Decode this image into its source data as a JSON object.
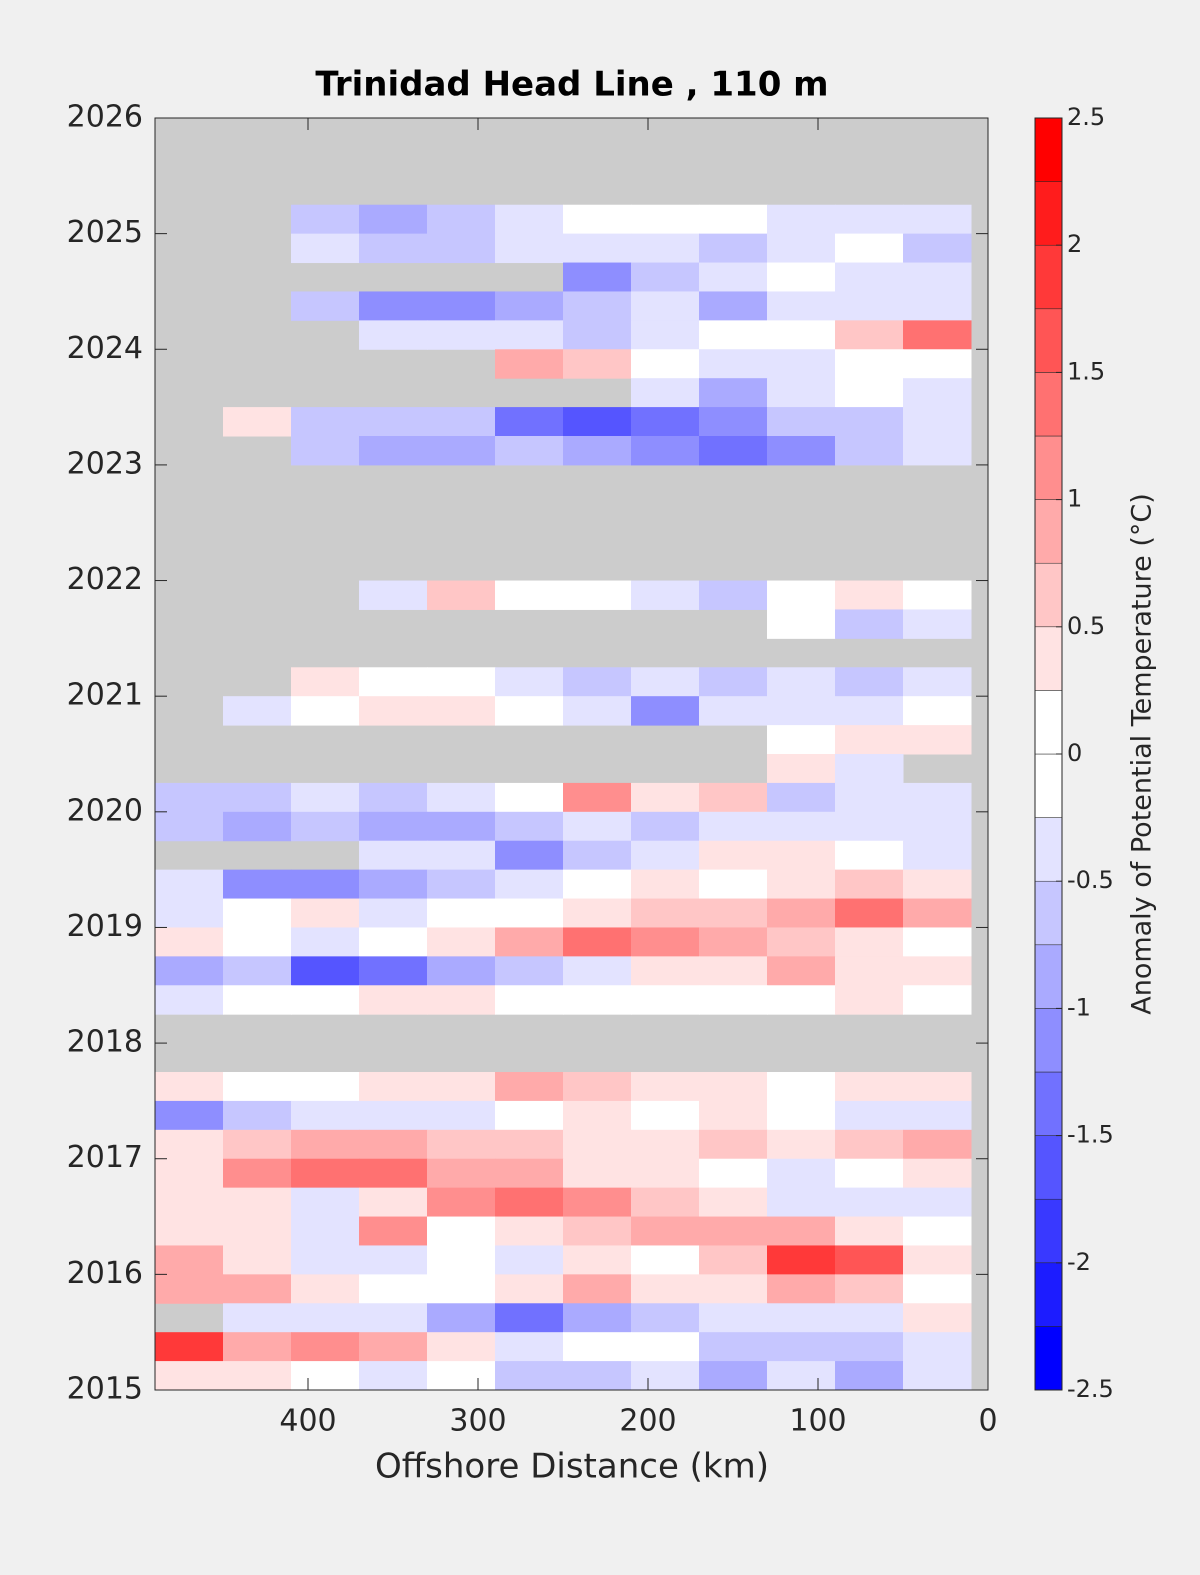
{
  "chart_data": {
    "type": "contourf",
    "title": "Trinidad Head Line , 110 m",
    "xlabel": "Offshore Distance (km)",
    "xlim": [
      490,
      0
    ],
    "xticks": [
      400,
      300,
      200,
      100,
      0
    ],
    "ylim": [
      2015,
      2026
    ],
    "yticks": [
      2015,
      2016,
      2017,
      2018,
      2019,
      2020,
      2021,
      2022,
      2023,
      2024,
      2025,
      2026
    ],
    "x": [
      470,
      430,
      390,
      350,
      310,
      270,
      230,
      190,
      150,
      110,
      70,
      30
    ],
    "y": [
      2025.875,
      2025.625,
      2025.375,
      2025.125,
      2024.875,
      2024.625,
      2024.375,
      2024.125,
      2023.875,
      2023.625,
      2023.375,
      2023.125,
      2022.875,
      2022.625,
      2022.375,
      2022.125,
      2021.875,
      2021.625,
      2021.375,
      2021.125,
      2020.875,
      2020.625,
      2020.375,
      2020.125,
      2019.875,
      2019.625,
      2019.375,
      2019.125,
      2018.875,
      2018.625,
      2018.375,
      2018.125,
      2017.875,
      2017.625,
      2017.375,
      2017.125,
      2016.875,
      2016.625,
      2016.375,
      2016.125,
      2015.875,
      2015.625,
      2015.375,
      2015.125
    ],
    "z": [
      [
        null,
        null,
        null,
        null,
        null,
        null,
        null,
        null,
        null,
        null,
        null,
        null
      ],
      [
        null,
        null,
        null,
        null,
        null,
        null,
        null,
        null,
        null,
        null,
        null,
        null
      ],
      [
        null,
        null,
        null,
        null,
        null,
        null,
        null,
        null,
        null,
        null,
        null,
        null
      ],
      [
        null,
        null,
        -0.6,
        -0.9,
        -0.5,
        -0.3,
        0.1,
        -0.1,
        0,
        -0.4,
        -0.3,
        -0.4
      ],
      [
        null,
        null,
        -0.4,
        -0.6,
        -0.5,
        -0.3,
        -0.4,
        -0.3,
        -0.6,
        -0.4,
        -0.2,
        -0.6
      ],
      [
        null,
        null,
        null,
        null,
        null,
        null,
        -1.2,
        -0.5,
        -0.3,
        -0.2,
        -0.4,
        -0.3
      ],
      [
        null,
        null,
        -0.7,
        -1.1,
        -1.0,
        -0.8,
        -0.5,
        -0.3,
        -0.8,
        -0.4,
        -0.3,
        -0.4
      ],
      [
        null,
        null,
        null,
        -0.3,
        -0.4,
        -0.4,
        -0.6,
        -0.3,
        0,
        0.1,
        0.7,
        1.4
      ],
      [
        null,
        null,
        null,
        null,
        null,
        1.0,
        0.6,
        0.2,
        -0.3,
        -0.4,
        -0.1,
        0.2
      ],
      [
        null,
        null,
        null,
        null,
        null,
        null,
        null,
        -0.3,
        -0.9,
        -0.3,
        -0.2,
        -0.3
      ],
      [
        null,
        0.3,
        -0.5,
        -0.6,
        -0.7,
        -1.3,
        -1.6,
        -1.4,
        -1.0,
        -0.7,
        -0.5,
        -0.4
      ],
      [
        null,
        null,
        -0.5,
        -0.8,
        -0.9,
        -0.6,
        -0.8,
        -1.0,
        -1.3,
        -1.1,
        -0.7,
        -0.4
      ],
      [
        null,
        null,
        null,
        null,
        null,
        null,
        null,
        null,
        null,
        null,
        null,
        null
      ],
      [
        null,
        null,
        null,
        null,
        null,
        null,
        null,
        null,
        null,
        null,
        null,
        null
      ],
      [
        null,
        null,
        null,
        null,
        null,
        null,
        null,
        null,
        null,
        null,
        null,
        null
      ],
      [
        null,
        null,
        null,
        null,
        null,
        null,
        null,
        null,
        null,
        null,
        null,
        null
      ],
      [
        null,
        null,
        null,
        -0.3,
        0.6,
        -0.2,
        0,
        -0.3,
        -0.6,
        -0.2,
        0.5,
        0.2
      ],
      [
        null,
        null,
        null,
        null,
        null,
        null,
        null,
        null,
        null,
        -0.2,
        -0.5,
        -0.3
      ],
      [
        null,
        null,
        null,
        null,
        null,
        null,
        null,
        null,
        null,
        null,
        null,
        null
      ],
      [
        null,
        null,
        0.3,
        0.2,
        0.2,
        -0.3,
        -0.6,
        -0.3,
        -0.5,
        -0.3,
        -0.6,
        -0.4
      ],
      [
        null,
        -0.3,
        0,
        0.3,
        0.5,
        0.2,
        -0.3,
        -1.0,
        -0.3,
        -0.4,
        -0.3,
        0.2
      ],
      [
        null,
        null,
        null,
        null,
        null,
        null,
        null,
        null,
        null,
        0.2,
        0.3,
        0.3
      ],
      [
        null,
        null,
        null,
        null,
        null,
        null,
        null,
        null,
        null,
        0.3,
        -0.3,
        null
      ],
      [
        -0.6,
        -0.7,
        -0.3,
        -0.5,
        -0.4,
        -0.2,
        1.2,
        0.3,
        0.6,
        -0.6,
        -0.3,
        -0.4
      ],
      [
        -0.7,
        -0.8,
        -0.5,
        -0.8,
        -0.8,
        -0.5,
        -0.3,
        -0.5,
        -0.4,
        -0.3,
        -0.3,
        -0.3
      ],
      [
        null,
        null,
        null,
        -0.4,
        -0.3,
        -1.1,
        -0.6,
        -0.3,
        0.3,
        0.4,
        -0.2,
        -0.3
      ],
      [
        -0.4,
        -1.0,
        -1.2,
        -0.9,
        -0.6,
        -0.3,
        0,
        0.3,
        0.2,
        0.5,
        0.7,
        0.4
      ],
      [
        -0.3,
        0,
        0.3,
        -0.3,
        0.2,
        0,
        0.3,
        0.7,
        0.6,
        0.8,
        1.3,
        0.9
      ],
      [
        0.3,
        0.2,
        -0.4,
        0,
        0.4,
        0.8,
        1.3,
        1.1,
        0.8,
        0.6,
        0.5,
        0.2
      ],
      [
        -0.8,
        -0.7,
        -1.5,
        -1.4,
        -0.9,
        -0.6,
        -0.4,
        0.5,
        0.3,
        0.8,
        0.3,
        0.4
      ],
      [
        -0.3,
        -0.2,
        0.2,
        0.4,
        0.3,
        0.2,
        0,
        0.2,
        -0.2,
        0,
        0.3,
        0.2
      ],
      [
        null,
        null,
        null,
        null,
        null,
        null,
        null,
        null,
        null,
        null,
        null,
        null
      ],
      [
        null,
        null,
        null,
        null,
        null,
        null,
        null,
        null,
        null,
        null,
        null,
        null
      ],
      [
        0.3,
        0,
        0.2,
        0.3,
        0.5,
        1.0,
        0.6,
        0.3,
        0.4,
        0.2,
        0.3,
        0.5
      ],
      [
        -1.2,
        -0.5,
        -0.3,
        -0.3,
        -0.3,
        -0.2,
        0.3,
        0,
        0.4,
        0.2,
        -0.3,
        -0.3
      ],
      [
        0.5,
        0.7,
        0.8,
        0.9,
        0.7,
        0.6,
        0.4,
        0.5,
        0.6,
        0.5,
        0.6,
        1.0
      ],
      [
        0.5,
        1.2,
        1.4,
        1.5,
        1.0,
        0.9,
        0.5,
        0.3,
        0,
        -0.3,
        0,
        0.3
      ],
      [
        0.3,
        0.4,
        -0.3,
        0.5,
        1.2,
        1.5,
        1.2,
        0.6,
        0.4,
        -0.3,
        -0.4,
        -0.3
      ],
      [
        0.4,
        0.3,
        -0.4,
        1.2,
        0,
        0.4,
        0.6,
        0.9,
        1.0,
        0.8,
        0.3,
        0
      ],
      [
        0.9,
        0.5,
        -0.3,
        -0.3,
        -0.2,
        -0.3,
        0.3,
        0.2,
        0.6,
        2.0,
        1.6,
        0.4
      ],
      [
        0.9,
        1.0,
        0.4,
        0.2,
        0,
        0.5,
        0.8,
        0.4,
        0.3,
        0.9,
        0.6,
        0
      ],
      [
        null,
        -0.3,
        -0.4,
        -0.4,
        -0.8,
        -1.3,
        -0.9,
        -0.5,
        -0.3,
        -0.4,
        -0.3,
        0.4
      ],
      [
        1.8,
        1.0,
        1.2,
        1.0,
        0.3,
        -0.3,
        0.2,
        0,
        -0.6,
        -0.5,
        -0.6,
        -0.3
      ],
      [
        0.4,
        0.3,
        0.2,
        -0.3,
        0,
        -0.5,
        -0.5,
        -0.4,
        -0.9,
        -0.4,
        -0.8,
        -0.3
      ]
    ],
    "colormap": [
      "#0000ff",
      "#ffffff",
      "#ff0000"
    ],
    "missing_color": "#cccccc",
    "colorbar": {
      "label": "Anomaly of Potential Temperature (°C)",
      "levels": [
        -2.5,
        -2.25,
        -2,
        -1.75,
        -1.5,
        -1.25,
        -1,
        -0.75,
        -0.5,
        -0.25,
        0,
        0.25,
        0.5,
        0.75,
        1,
        1.25,
        1.5,
        1.75,
        2,
        2.25,
        2.5
      ],
      "ticks": [
        -2.5,
        -2,
        -1.5,
        -1,
        -0.5,
        0,
        0.5,
        1,
        1.5,
        2,
        2.5
      ]
    }
  }
}
